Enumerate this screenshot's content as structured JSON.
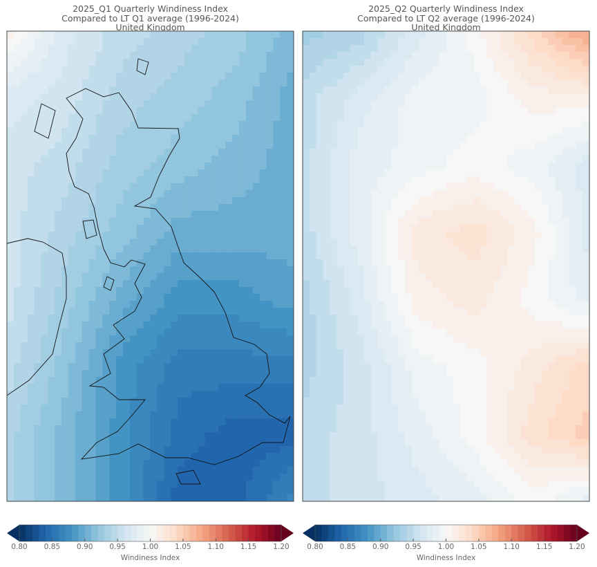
{
  "chart_data": [
    {
      "type": "heatmap",
      "title": [
        "2025_Q1 Quarterly Windiness Index",
        "Compared to LT Q1 average (1996-2024)",
        "United Kingdom"
      ],
      "colorbar_label": "Windiness Index",
      "colorbar_ticks": [
        "0.80",
        "0.85",
        "0.90",
        "0.95",
        "1.00",
        "1.05",
        "1.10",
        "1.15",
        "1.20"
      ],
      "range": [
        0.8,
        1.2
      ],
      "colormap": "RdBu_r",
      "grid": [
        [
          1.01,
          0.97,
          0.95,
          0.94,
          0.93,
          0.91
        ],
        [
          0.97,
          0.96,
          0.94,
          0.93,
          0.92,
          0.9
        ],
        [
          0.96,
          0.95,
          0.93,
          0.92,
          0.91,
          0.9
        ],
        [
          0.96,
          0.94,
          0.92,
          0.9,
          0.9,
          0.9
        ],
        [
          0.96,
          0.93,
          0.9,
          0.88,
          0.88,
          0.89
        ],
        [
          0.95,
          0.92,
          0.88,
          0.86,
          0.86,
          0.86
        ],
        [
          0.94,
          0.91,
          0.88,
          0.85,
          0.84,
          0.84
        ],
        [
          0.94,
          0.91,
          0.88,
          0.84,
          0.84,
          0.87
        ]
      ]
    },
    {
      "type": "heatmap",
      "title": [
        "2025_Q2 Quarterly Windiness Index",
        "Compared to LT Q2 average (1996-2024)",
        "United Kingdom"
      ],
      "colorbar_label": "Windiness Index",
      "colorbar_ticks": [
        "0.80",
        "0.85",
        "0.90",
        "0.95",
        "1.00",
        "1.05",
        "1.10",
        "1.15",
        "1.20"
      ],
      "range": [
        0.8,
        1.2
      ],
      "colormap": "RdBu_r",
      "grid": [
        [
          0.93,
          0.94,
          0.97,
          1.0,
          1.04,
          1.08
        ],
        [
          0.95,
          0.97,
          0.99,
          0.99,
          1.01,
          1.01
        ],
        [
          0.95,
          0.98,
          0.99,
          1.0,
          0.99,
          0.97
        ],
        [
          0.95,
          0.98,
          1.02,
          1.03,
          1.01,
          0.97
        ],
        [
          0.94,
          0.97,
          1.01,
          1.02,
          1.0,
          0.98
        ],
        [
          0.94,
          0.96,
          0.99,
          1.0,
          1.02,
          1.04
        ],
        [
          0.95,
          0.96,
          0.98,
          1.0,
          1.03,
          1.05
        ],
        [
          0.95,
          0.96,
          0.97,
          0.98,
          1.0,
          0.98
        ]
      ]
    }
  ]
}
